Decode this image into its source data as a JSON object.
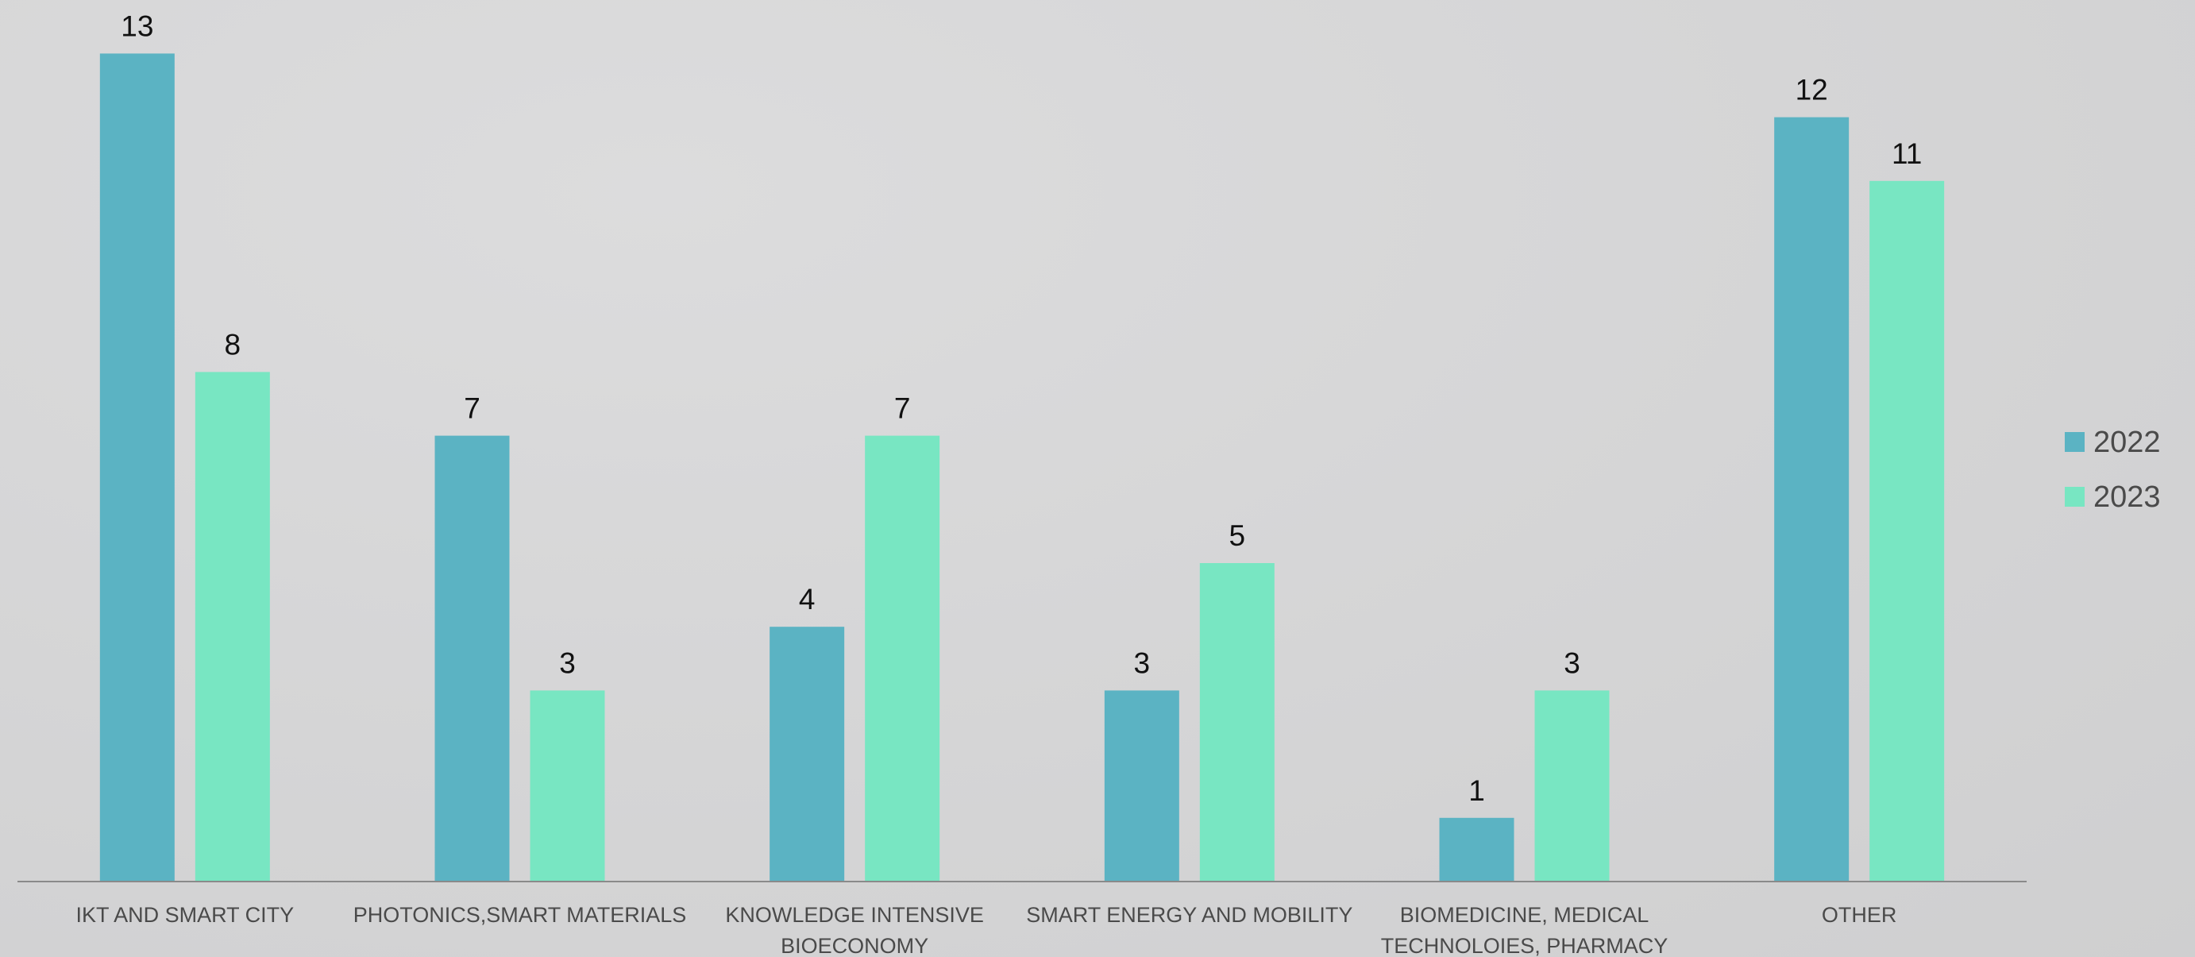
{
  "chart_data": {
    "type": "bar",
    "categories": [
      [
        "IKT AND SMART CITY"
      ],
      [
        "PHOTONICS,SMART MATERIALS"
      ],
      [
        "KNOWLEDGE INTENSIVE",
        "BIOECONOMY"
      ],
      [
        "SMART ENERGY AND MOBILITY"
      ],
      [
        "BIOMEDICINE, MEDICAL",
        "TECHNOLOIES, PHARMACY"
      ],
      [
        "OTHER"
      ]
    ],
    "series": [
      {
        "name": "2022",
        "color": "#5bb3c3",
        "values": [
          13,
          7,
          4,
          3,
          1,
          12
        ]
      },
      {
        "name": "2023",
        "color": "#78e6c2",
        "values": [
          8,
          3,
          7,
          5,
          3,
          11
        ]
      }
    ],
    "ylim": [
      0,
      14
    ],
    "grid": false,
    "legend_position": "right",
    "data_labels": true
  }
}
